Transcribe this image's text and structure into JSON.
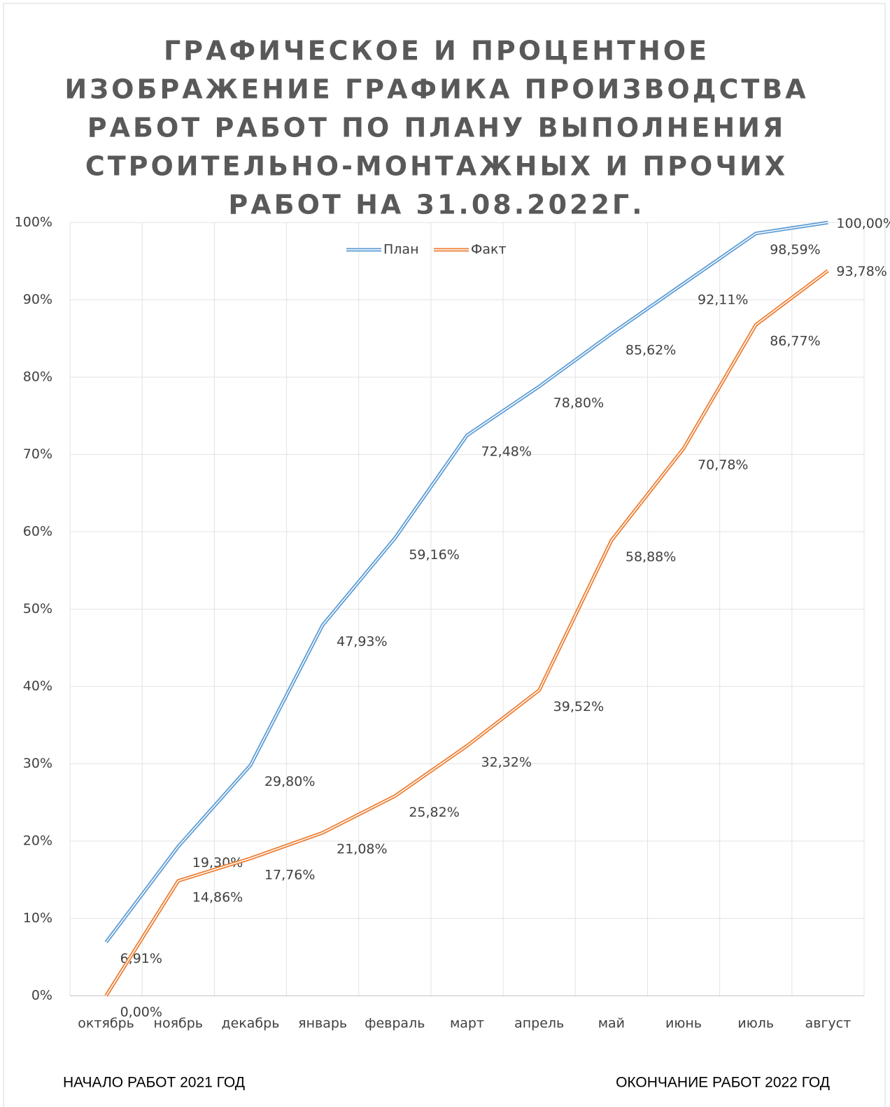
{
  "chart_data": {
    "type": "line",
    "title": [
      "ГРАФИЧЕСКОЕ И ПРОЦЕНТНОЕ",
      "ИЗОБРАЖЕНИЕ ГРАФИКА ПРОИЗВОДСТВА",
      "РАБОТ РАБОТ ПО ПЛАНУ ВЫПОЛНЕНИЯ",
      "СТРОИТЕЛЬНО-МОНТАЖНЫХ И ПРОЧИХ",
      "РАБОТ НА 31.08.2022Г."
    ],
    "categories": [
      "октябрь",
      "ноябрь",
      "декабрь",
      "январь",
      "февраль",
      "март",
      "апрель",
      "май",
      "июнь",
      "июль",
      "август"
    ],
    "series": [
      {
        "name": "План",
        "color": "#5b9bd5",
        "values": [
          6.91,
          19.3,
          29.8,
          47.93,
          59.16,
          72.48,
          78.8,
          85.62,
          92.11,
          98.59,
          100.0
        ],
        "value_labels": [
          "6,91%",
          "19,30%",
          "29,80%",
          "47,93%",
          "59,16%",
          "72,48%",
          "78,80%",
          "85,62%",
          "92,11%",
          "98,59%",
          "100,00%"
        ]
      },
      {
        "name": "Факт",
        "color": "#ed7d31",
        "values": [
          0.0,
          14.86,
          17.76,
          21.08,
          25.82,
          32.32,
          39.52,
          58.88,
          70.78,
          86.77,
          93.78
        ],
        "value_labels": [
          "0,00%",
          "14,86%",
          "17,76%",
          "21,08%",
          "25,82%",
          "32,32%",
          "39,52%",
          "58,88%",
          "70,78%",
          "86,77%",
          "93,78%"
        ]
      }
    ],
    "ylim": [
      0,
      100
    ],
    "yticks": [
      {
        "value": 0,
        "label": "0%"
      },
      {
        "value": 10,
        "label": "10%"
      },
      {
        "value": 20,
        "label": "20%"
      },
      {
        "value": 30,
        "label": "30%"
      },
      {
        "value": 40,
        "label": "40%"
      },
      {
        "value": 50,
        "label": "50%"
      },
      {
        "value": 60,
        "label": "60%"
      },
      {
        "value": 70,
        "label": "70%"
      },
      {
        "value": 80,
        "label": "80%"
      },
      {
        "value": 90,
        "label": "90%"
      },
      {
        "value": 100,
        "label": "100%"
      }
    ],
    "grid": true,
    "legend": "top",
    "footer_left": "НАЧАЛО РАБОТ 2021 ГОД",
    "footer_right": "ОКОНЧАНИЕ РАБОТ 2022 ГОД"
  }
}
